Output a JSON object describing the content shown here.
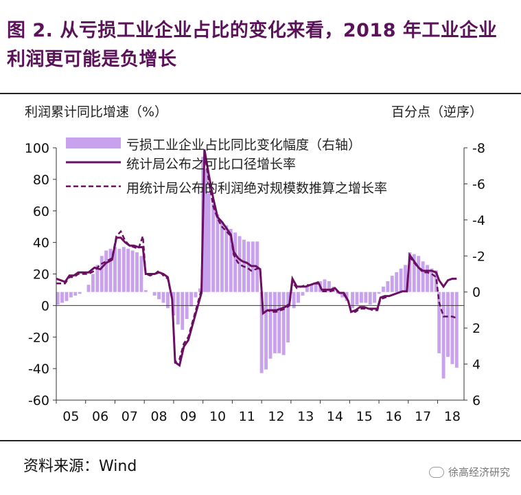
{
  "title": "图 2. 从亏损工业企业占比的变化来看，2018 年工业企业利润更可能是负增长",
  "source": "资料来源：Wind",
  "watermark": "徐高经济研究",
  "colors": {
    "title": "#5a1259",
    "bar": "#c9a2ee",
    "line": "#6a0f62"
  },
  "chart_data": {
    "type": "bar+line",
    "ylabel_left": "利润累计同比增速（%）",
    "ylabel_right": "百分点（逆序）",
    "ylim_left": [
      -60,
      100
    ],
    "yticks_left": [
      "100",
      "80",
      "60",
      "40",
      "20",
      "0",
      "-20",
      "-40",
      "-60"
    ],
    "ylim_right": [
      6,
      -8
    ],
    "yticks_right": [
      "-8",
      "-6",
      "-4",
      "-2",
      "0",
      "2",
      "4",
      "6"
    ],
    "xticks": [
      "05",
      "06",
      "07",
      "08",
      "09",
      "10",
      "11",
      "12",
      "13",
      "14",
      "15",
      "16",
      "17",
      "18"
    ],
    "legend": [
      "亏损工业企业占比同比变化幅度（右轴）",
      "统计局公布之可比口径增长率",
      "用统计局公布的利润绝对规模数推算之增长率"
    ],
    "bars_right_axis": [
      [
        2005.05,
        0.7
      ],
      [
        2005.2,
        0.6
      ],
      [
        2005.35,
        0.5
      ],
      [
        2005.5,
        0.3
      ],
      [
        2005.65,
        0.2
      ],
      [
        2005.8,
        0.1
      ],
      [
        2005.95,
        0.0
      ],
      [
        2006.1,
        -0.4
      ],
      [
        2006.25,
        -1.0
      ],
      [
        2006.4,
        -1.5
      ],
      [
        2006.55,
        -2.0
      ],
      [
        2006.7,
        -2.3
      ],
      [
        2006.85,
        -2.4
      ],
      [
        2007.0,
        -2.5
      ],
      [
        2007.15,
        -2.4
      ],
      [
        2007.3,
        -2.5
      ],
      [
        2007.45,
        -2.4
      ],
      [
        2007.6,
        -2.3
      ],
      [
        2007.75,
        -2.2
      ],
      [
        2007.9,
        -2.0
      ],
      [
        2008.05,
        -0.1
      ],
      [
        2008.2,
        0.0
      ],
      [
        2008.35,
        0.2
      ],
      [
        2008.5,
        0.4
      ],
      [
        2008.65,
        0.6
      ],
      [
        2008.8,
        0.9
      ],
      [
        2009.0,
        1.3
      ],
      [
        2009.15,
        1.8
      ],
      [
        2009.3,
        2.1
      ],
      [
        2009.45,
        1.5
      ],
      [
        2009.6,
        0.8
      ],
      [
        2009.75,
        0.3
      ],
      [
        2009.9,
        -0.2
      ],
      [
        2010.0,
        -7.5
      ],
      [
        2010.1,
        -6.8
      ],
      [
        2010.2,
        -5.5
      ],
      [
        2010.35,
        -4.9
      ],
      [
        2010.5,
        -4.3
      ],
      [
        2010.65,
        -3.9
      ],
      [
        2010.8,
        -3.7
      ],
      [
        2010.95,
        -3.5
      ],
      [
        2011.1,
        -3.3
      ],
      [
        2011.25,
        -3.1
      ],
      [
        2011.4,
        -2.9
      ],
      [
        2011.55,
        -2.8
      ],
      [
        2011.7,
        -2.8
      ],
      [
        2011.85,
        -2.8
      ],
      [
        2012.0,
        4.5
      ],
      [
        2012.15,
        4.3
      ],
      [
        2012.3,
        3.7
      ],
      [
        2012.45,
        3.4
      ],
      [
        2012.6,
        3.4
      ],
      [
        2012.75,
        3.5
      ],
      [
        2012.9,
        2.8
      ],
      [
        2013.1,
        0.9
      ],
      [
        2013.25,
        0.6
      ],
      [
        2013.4,
        0.2
      ],
      [
        2013.55,
        -0.3
      ],
      [
        2013.7,
        -0.4
      ],
      [
        2013.85,
        -0.5
      ],
      [
        2014.0,
        -0.6
      ],
      [
        2014.15,
        -0.7
      ],
      [
        2014.3,
        -0.6
      ],
      [
        2014.45,
        -0.3
      ],
      [
        2014.6,
        0.1
      ],
      [
        2014.75,
        0.3
      ],
      [
        2014.9,
        0.5
      ],
      [
        2015.1,
        0.9
      ],
      [
        2015.25,
        0.7
      ],
      [
        2015.4,
        0.6
      ],
      [
        2015.55,
        0.6
      ],
      [
        2015.7,
        0.7
      ],
      [
        2015.85,
        0.6
      ],
      [
        2016.0,
        0.1
      ],
      [
        2016.15,
        -0.3
      ],
      [
        2016.3,
        -0.6
      ],
      [
        2016.45,
        -0.9
      ],
      [
        2016.6,
        -1.1
      ],
      [
        2016.75,
        -1.3
      ],
      [
        2016.9,
        -1.5
      ],
      [
        2017.05,
        -2.2
      ],
      [
        2017.2,
        -2.1
      ],
      [
        2017.35,
        -2.0
      ],
      [
        2017.5,
        -1.7
      ],
      [
        2017.65,
        -1.5
      ],
      [
        2017.8,
        -1.3
      ],
      [
        2017.95,
        -1.2
      ],
      [
        2018.05,
        3.4
      ],
      [
        2018.2,
        4.8
      ],
      [
        2018.35,
        3.6
      ],
      [
        2018.5,
        4.0
      ],
      [
        2018.65,
        4.2
      ]
    ],
    "series_solid": [
      [
        2005.0,
        17
      ],
      [
        2005.15,
        16
      ],
      [
        2005.3,
        15
      ],
      [
        2005.45,
        19
      ],
      [
        2005.6,
        19
      ],
      [
        2005.75,
        21
      ],
      [
        2005.9,
        21
      ],
      [
        2006.1,
        21
      ],
      [
        2006.3,
        24
      ],
      [
        2006.5,
        23
      ],
      [
        2006.7,
        27
      ],
      [
        2006.9,
        29
      ],
      [
        2007.05,
        43
      ],
      [
        2007.2,
        43
      ],
      [
        2007.35,
        40
      ],
      [
        2007.5,
        38
      ],
      [
        2007.65,
        38
      ],
      [
        2007.8,
        37
      ],
      [
        2007.95,
        37
      ],
      [
        2008.05,
        20
      ],
      [
        2008.2,
        20
      ],
      [
        2008.35,
        20
      ],
      [
        2008.5,
        21
      ],
      [
        2008.65,
        20
      ],
      [
        2008.8,
        18
      ],
      [
        2008.95,
        4
      ],
      [
        2009.05,
        -36
      ],
      [
        2009.2,
        -38
      ],
      [
        2009.35,
        -26
      ],
      [
        2009.5,
        -22
      ],
      [
        2009.65,
        -12
      ],
      [
        2009.8,
        -2
      ],
      [
        2009.95,
        8
      ],
      [
        2010.05,
        99
      ],
      [
        2010.2,
        83
      ],
      [
        2010.35,
        68
      ],
      [
        2010.5,
        56
      ],
      [
        2010.65,
        53
      ],
      [
        2010.8,
        49
      ],
      [
        2010.95,
        45
      ],
      [
        2011.05,
        34
      ],
      [
        2011.2,
        30
      ],
      [
        2011.35,
        28
      ],
      [
        2011.5,
        27
      ],
      [
        2011.65,
        25
      ],
      [
        2011.8,
        25
      ],
      [
        2011.95,
        23
      ],
      [
        2012.05,
        -5
      ],
      [
        2012.2,
        -3
      ],
      [
        2012.35,
        -3
      ],
      [
        2012.5,
        -3
      ],
      [
        2012.65,
        -2
      ],
      [
        2012.8,
        -1
      ],
      [
        2012.95,
        1
      ],
      [
        2013.05,
        17
      ],
      [
        2013.2,
        12
      ],
      [
        2013.35,
        12
      ],
      [
        2013.5,
        12
      ],
      [
        2013.65,
        13
      ],
      [
        2013.8,
        14
      ],
      [
        2013.95,
        14
      ],
      [
        2014.05,
        10
      ],
      [
        2014.2,
        10
      ],
      [
        2014.35,
        10
      ],
      [
        2014.5,
        11
      ],
      [
        2014.65,
        8
      ],
      [
        2014.8,
        8
      ],
      [
        2014.95,
        3
      ],
      [
        2015.05,
        -4
      ],
      [
        2015.2,
        -3
      ],
      [
        2015.35,
        -1
      ],
      [
        2015.5,
        -1
      ],
      [
        2015.65,
        -2
      ],
      [
        2015.8,
        -2
      ],
      [
        2015.95,
        -2
      ],
      [
        2016.05,
        5
      ],
      [
        2016.2,
        6
      ],
      [
        2016.35,
        6
      ],
      [
        2016.5,
        7
      ],
      [
        2016.65,
        8
      ],
      [
        2016.8,
        9
      ],
      [
        2016.95,
        9
      ],
      [
        2017.05,
        32
      ],
      [
        2017.2,
        28
      ],
      [
        2017.35,
        24
      ],
      [
        2017.5,
        22
      ],
      [
        2017.65,
        22
      ],
      [
        2017.8,
        22
      ],
      [
        2017.95,
        21
      ],
      [
        2018.05,
        16
      ],
      [
        2018.2,
        12
      ],
      [
        2018.35,
        16
      ],
      [
        2018.5,
        17
      ],
      [
        2018.65,
        17
      ]
    ],
    "series_dashed": [
      [
        2005.0,
        14
      ],
      [
        2005.15,
        14
      ],
      [
        2005.3,
        14
      ],
      [
        2005.45,
        18
      ],
      [
        2005.6,
        18
      ],
      [
        2005.75,
        20
      ],
      [
        2005.9,
        20
      ],
      [
        2006.1,
        20
      ],
      [
        2006.3,
        22
      ],
      [
        2006.5,
        26
      ],
      [
        2006.7,
        28
      ],
      [
        2006.9,
        30
      ],
      [
        2007.05,
        44
      ],
      [
        2007.2,
        47
      ],
      [
        2007.35,
        41
      ],
      [
        2007.5,
        38
      ],
      [
        2007.65,
        37
      ],
      [
        2007.8,
        36
      ],
      [
        2007.95,
        44
      ],
      [
        2008.05,
        20
      ],
      [
        2008.2,
        19
      ],
      [
        2008.35,
        20
      ],
      [
        2008.5,
        22
      ],
      [
        2008.65,
        19
      ],
      [
        2008.8,
        17
      ],
      [
        2008.95,
        4
      ],
      [
        2009.05,
        -36
      ],
      [
        2009.2,
        -34
      ],
      [
        2009.35,
        -24
      ],
      [
        2009.5,
        -20
      ],
      [
        2009.65,
        -10
      ],
      [
        2009.8,
        0
      ],
      [
        2009.95,
        10
      ],
      [
        2010.05,
        97
      ],
      [
        2010.2,
        79
      ],
      [
        2010.35,
        63
      ],
      [
        2010.5,
        55
      ],
      [
        2010.65,
        50
      ],
      [
        2010.8,
        47
      ],
      [
        2010.95,
        44
      ],
      [
        2011.05,
        32
      ],
      [
        2011.2,
        27
      ],
      [
        2011.35,
        25
      ],
      [
        2011.5,
        24
      ],
      [
        2011.65,
        22
      ],
      [
        2011.8,
        23
      ],
      [
        2011.95,
        24
      ],
      [
        2012.05,
        -4
      ],
      [
        2012.2,
        -3
      ],
      [
        2012.35,
        -4
      ],
      [
        2012.5,
        -4
      ],
      [
        2012.65,
        -3
      ],
      [
        2012.8,
        -2
      ],
      [
        2012.95,
        0
      ],
      [
        2013.05,
        15
      ],
      [
        2013.2,
        11
      ],
      [
        2013.35,
        12
      ],
      [
        2013.5,
        13
      ],
      [
        2013.65,
        13
      ],
      [
        2013.8,
        14
      ],
      [
        2013.95,
        15
      ],
      [
        2014.05,
        9
      ],
      [
        2014.2,
        9
      ],
      [
        2014.35,
        9
      ],
      [
        2014.5,
        10
      ],
      [
        2014.65,
        8
      ],
      [
        2014.8,
        7
      ],
      [
        2014.95,
        3
      ],
      [
        2015.05,
        -4
      ],
      [
        2015.2,
        -4
      ],
      [
        2015.35,
        -2
      ],
      [
        2015.5,
        -2
      ],
      [
        2015.65,
        -2
      ],
      [
        2015.8,
        -3
      ],
      [
        2015.95,
        -3
      ],
      [
        2016.05,
        4
      ],
      [
        2016.2,
        5
      ],
      [
        2016.35,
        6
      ],
      [
        2016.5,
        7
      ],
      [
        2016.65,
        8
      ],
      [
        2016.8,
        9
      ],
      [
        2016.95,
        9
      ],
      [
        2017.05,
        31
      ],
      [
        2017.2,
        27
      ],
      [
        2017.35,
        24
      ],
      [
        2017.5,
        21
      ],
      [
        2017.65,
        21
      ],
      [
        2017.8,
        20
      ],
      [
        2017.95,
        18
      ],
      [
        2018.05,
        2
      ],
      [
        2018.2,
        -7
      ],
      [
        2018.35,
        -7
      ],
      [
        2018.5,
        -7
      ],
      [
        2018.65,
        -8
      ]
    ]
  }
}
